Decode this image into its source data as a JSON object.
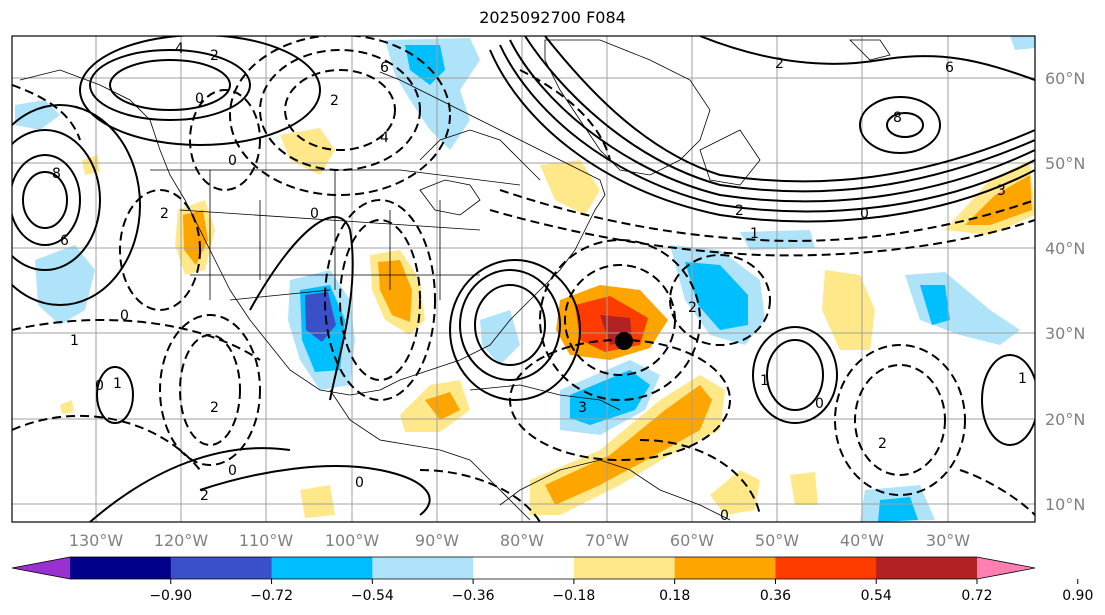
{
  "title": "2025092700 F084",
  "map": {
    "lon_labels": [
      "130°W",
      "120°W",
      "110°W",
      "100°W",
      "90°W",
      "80°W",
      "70°W",
      "60°W",
      "50°W",
      "40°W",
      "30°W"
    ],
    "lat_labels": [
      "60°N",
      "50°N",
      "40°N",
      "30°N",
      "20°N",
      "10°N"
    ],
    "marker": "storm-center",
    "contour_labels": [
      "4",
      "2",
      "6",
      "0",
      "2",
      "4",
      "8",
      "6",
      "0",
      "2",
      "1",
      "0",
      "2",
      "6",
      "8",
      "0",
      "2",
      "0",
      "1",
      "2",
      "3",
      "0",
      "1",
      "2",
      "0",
      "1",
      "0",
      "0",
      "2",
      "1",
      "3",
      "0",
      "2"
    ]
  },
  "colorbar": {
    "tick_labels": [
      "−0.90",
      "−0.72",
      "−0.54",
      "−0.36",
      "−0.18",
      "0.18",
      "0.36",
      "0.54",
      "0.72",
      "0.90"
    ],
    "colors": [
      "#9b30d0",
      "#00008b",
      "#3a50c8",
      "#00bfff",
      "#aee3fa",
      "#ffffff",
      "#ffe88a",
      "#ffa500",
      "#ff3c00",
      "#b22222",
      "#ff80b0"
    ],
    "extend": "both"
  }
}
